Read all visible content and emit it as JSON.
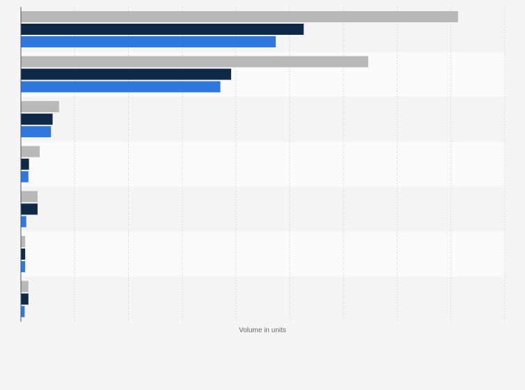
{
  "chart_data": {
    "type": "bar",
    "orientation": "horizontal",
    "title": "",
    "xlabel": "Volume in units",
    "ylabel": "",
    "categories": [
      "",
      "",
      "",
      "",
      "",
      "",
      ""
    ],
    "series": [
      {
        "values": [
          813,
          646,
          71,
          35,
          31,
          8,
          14
        ],
        "color": "#b9b9b9"
      },
      {
        "values": [
          526,
          391,
          59,
          15,
          31,
          8,
          14
        ],
        "color": "#0f2a47"
      },
      {
        "values": [
          474,
          371,
          56,
          14,
          10,
          8,
          7
        ],
        "color": "#2f78e0"
      }
    ],
    "xlim": [
      0,
      900
    ],
    "grid": true,
    "legend": "none"
  }
}
